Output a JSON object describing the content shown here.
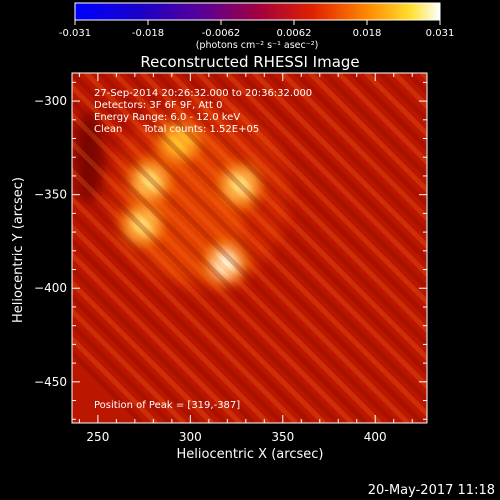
{
  "colorbar": {
    "ticks": [
      "-0.031",
      "-0.018",
      "-0.0062",
      "0.0062",
      "0.018",
      "0.031"
    ],
    "unit_label": "(photons cm⁻² s⁻¹ asec⁻²)"
  },
  "annotations": {
    "time_range": "27-Sep-2014 20:26:32.000 to 20:36:32.000",
    "detectors": "Detectors: 3F 6F 9F, Att 0",
    "energy": "Energy Range: 6.0 - 12.0 keV",
    "clean_label": "Clean",
    "total_counts": "Total counts: 1.52E+05",
    "peak": "Position of Peak = [319,-387]"
  },
  "footer": {
    "timestamp": "20-May-2017 11:18"
  },
  "chart_data": {
    "type": "heatmap",
    "title": "Reconstructed RHESSI Image",
    "xlabel": "Heliocentric X (arcsec)",
    "ylabel": "Heliocentric Y (arcsec)",
    "xlim": [
      236,
      428
    ],
    "ylim": [
      -472,
      -285
    ],
    "colorbar_range": [
      -0.031,
      0.031
    ],
    "xticks": [
      250,
      300,
      350,
      400
    ],
    "yticks": [
      -300,
      -350,
      -400,
      -450
    ],
    "peak": [
      319,
      -387
    ],
    "sources": [
      {
        "x": 294,
        "y": -322,
        "relative_intensity": 0.55
      },
      {
        "x": 278,
        "y": -343,
        "relative_intensity": 0.75
      },
      {
        "x": 274,
        "y": -366,
        "relative_intensity": 0.72
      },
      {
        "x": 327,
        "y": -345,
        "relative_intensity": 0.82
      },
      {
        "x": 319,
        "y": -387,
        "relative_intensity": 1.0
      }
    ]
  }
}
